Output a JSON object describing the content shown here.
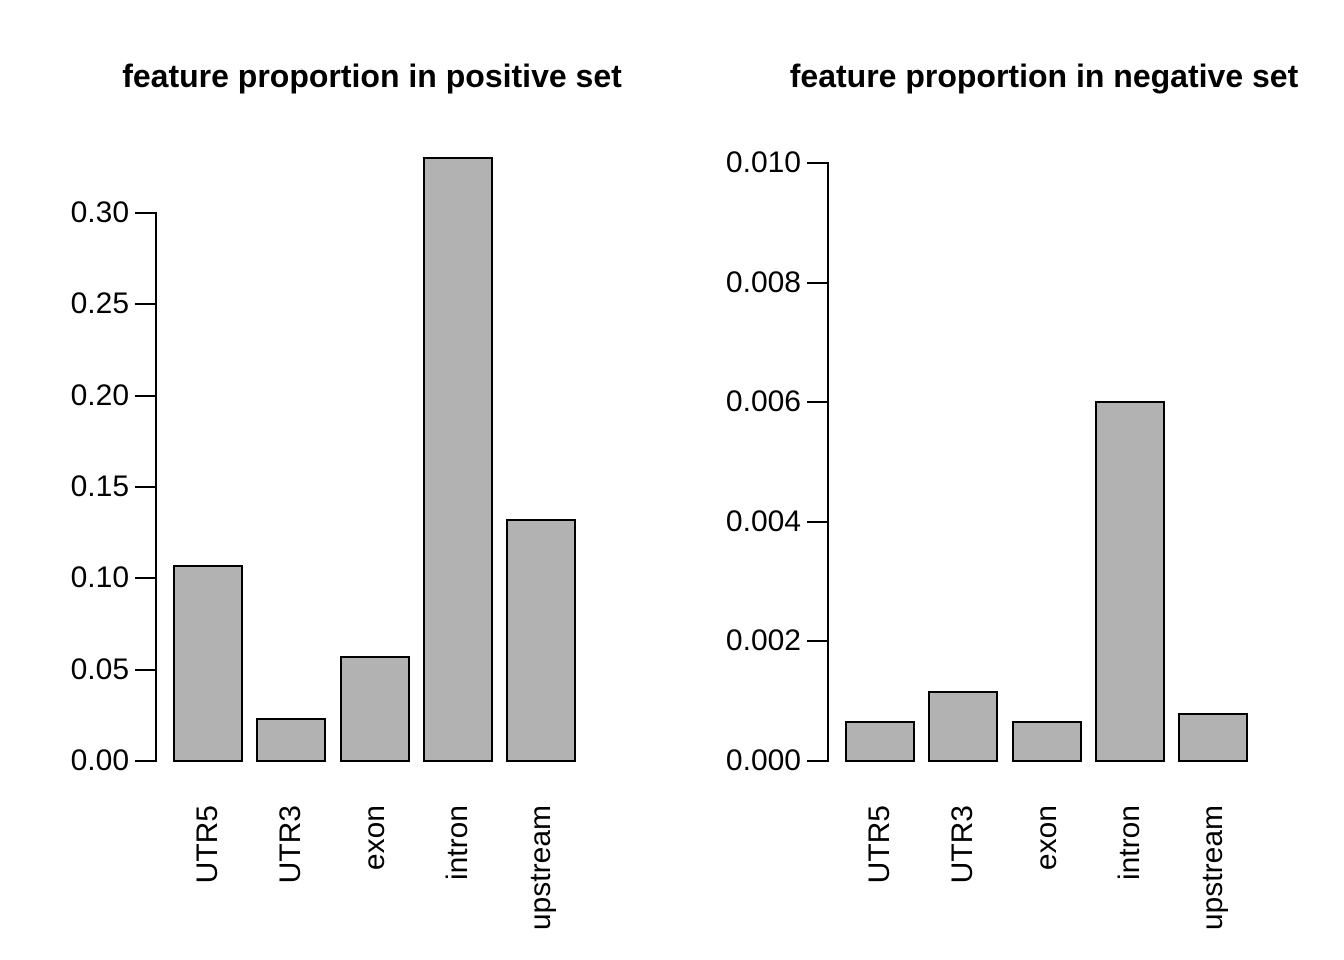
{
  "figure": {
    "background": "#ffffff",
    "bar_fill": "#b2b2b2",
    "bar_stroke": "#000000",
    "text_color": "#000000"
  },
  "chart_data": [
    {
      "type": "bar",
      "title": "feature proportion in positive set",
      "categories": [
        "UTR5",
        "UTR3",
        "exon",
        "intron",
        "upstream"
      ],
      "values": [
        0.107,
        0.023,
        0.057,
        0.33,
        0.132
      ],
      "xlabel": "",
      "ylabel": "",
      "ylim": [
        0,
        0.3
      ],
      "yticks": [
        0.0,
        0.05,
        0.1,
        0.15,
        0.2,
        0.25,
        0.3
      ],
      "ytick_labels": [
        "0.00",
        "0.05",
        "0.10",
        "0.15",
        "0.20",
        "0.25",
        "0.30"
      ],
      "grid": false,
      "legend": "none"
    },
    {
      "type": "bar",
      "title": "feature proportion in negative set",
      "categories": [
        "UTR5",
        "UTR3",
        "exon",
        "intron",
        "upstream"
      ],
      "values": [
        0.00065,
        0.00115,
        0.00065,
        0.006,
        0.00078
      ],
      "xlabel": "",
      "ylabel": "",
      "ylim": [
        0,
        0.01
      ],
      "yticks": [
        0.0,
        0.002,
        0.004,
        0.006,
        0.008,
        0.01
      ],
      "ytick_labels": [
        "0.000",
        "0.002",
        "0.004",
        "0.006",
        "0.008",
        "0.010"
      ],
      "grid": false,
      "legend": "none"
    }
  ]
}
